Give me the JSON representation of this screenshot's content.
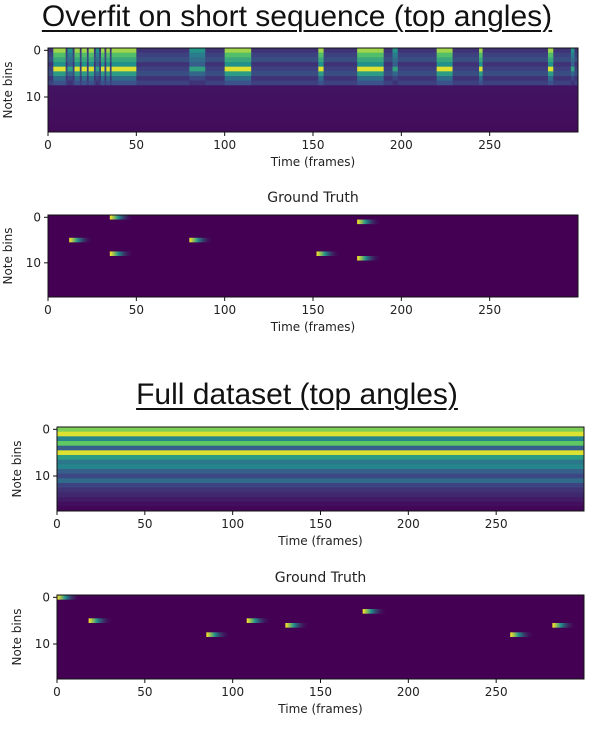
{
  "sections": [
    {
      "title": "Overfit on short sequence (top angles)"
    },
    {
      "title": "Full dataset (top angles)"
    }
  ],
  "colors": {
    "bg": "#440154",
    "mid": "#3b528b",
    "teal": "#21918c",
    "green": "#5ec962",
    "yellow": "#fde725"
  },
  "chart_data": [
    {
      "type": "heatmap",
      "title": "",
      "xlabel": "Time (frames)",
      "ylabel": "Note bins",
      "xlim": [
        0,
        300
      ],
      "ylim": [
        18,
        0
      ],
      "x_ticks": [
        "0",
        "50",
        "100",
        "150",
        "200",
        "250"
      ],
      "y_ticks": [
        "0",
        "10"
      ],
      "active_rows": [
        0,
        1,
        2,
        3,
        4,
        5,
        6,
        7
      ],
      "segments": [
        [
          3,
          10
        ],
        [
          11,
          14
        ],
        [
          15,
          18
        ],
        [
          19,
          22
        ],
        [
          23,
          26
        ],
        [
          27,
          29
        ],
        [
          30,
          32
        ],
        [
          33,
          35
        ],
        [
          36,
          50
        ],
        [
          80,
          89
        ],
        [
          100,
          115
        ],
        [
          153,
          156
        ],
        [
          175,
          190
        ],
        [
          195,
          198
        ],
        [
          220,
          229
        ],
        [
          244,
          246
        ],
        [
          283,
          286
        ],
        [
          296,
          298
        ]
      ]
    },
    {
      "type": "heatmap",
      "title": "Ground Truth",
      "xlabel": "Time (frames)",
      "ylabel": "Note bins",
      "xlim": [
        0,
        300
      ],
      "ylim": [
        18,
        0
      ],
      "x_ticks": [
        "0",
        "50",
        "100",
        "150",
        "200",
        "250"
      ],
      "y_ticks": [
        "0",
        "10"
      ],
      "events": [
        {
          "t": 35,
          "bin": 0
        },
        {
          "t": 12,
          "bin": 5
        },
        {
          "t": 80,
          "bin": 5
        },
        {
          "t": 35,
          "bin": 8
        },
        {
          "t": 175,
          "bin": 1
        },
        {
          "t": 152,
          "bin": 8
        },
        {
          "t": 175,
          "bin": 9
        }
      ]
    },
    {
      "type": "heatmap",
      "title": "",
      "xlabel": "Time (frames)",
      "ylabel": "Note bins",
      "xlim": [
        0,
        300
      ],
      "ylim": [
        18,
        0
      ],
      "x_ticks": [
        "0",
        "50",
        "100",
        "150",
        "200",
        "250"
      ],
      "y_ticks": [
        "0",
        "10"
      ],
      "row_levels": [
        0.8,
        0.95,
        0.45,
        0.75,
        0.3,
        0.95,
        0.55,
        0.4,
        0.45,
        0.3,
        0.22,
        0.35,
        0.2,
        0.15,
        0.12,
        0.08,
        0.04,
        0.02
      ]
    },
    {
      "type": "heatmap",
      "title": "Ground Truth",
      "xlabel": "Time (frames)",
      "ylabel": "Note bins",
      "xlim": [
        0,
        300
      ],
      "ylim": [
        18,
        0
      ],
      "x_ticks": [
        "0",
        "50",
        "100",
        "150",
        "200",
        "250"
      ],
      "y_ticks": [
        "0",
        "10"
      ],
      "events": [
        {
          "t": 0,
          "bin": 0
        },
        {
          "t": 18,
          "bin": 5
        },
        {
          "t": 108,
          "bin": 5
        },
        {
          "t": 130,
          "bin": 6
        },
        {
          "t": 174,
          "bin": 3
        },
        {
          "t": 282,
          "bin": 6
        },
        {
          "t": 85,
          "bin": 8
        },
        {
          "t": 258,
          "bin": 8
        }
      ]
    }
  ]
}
